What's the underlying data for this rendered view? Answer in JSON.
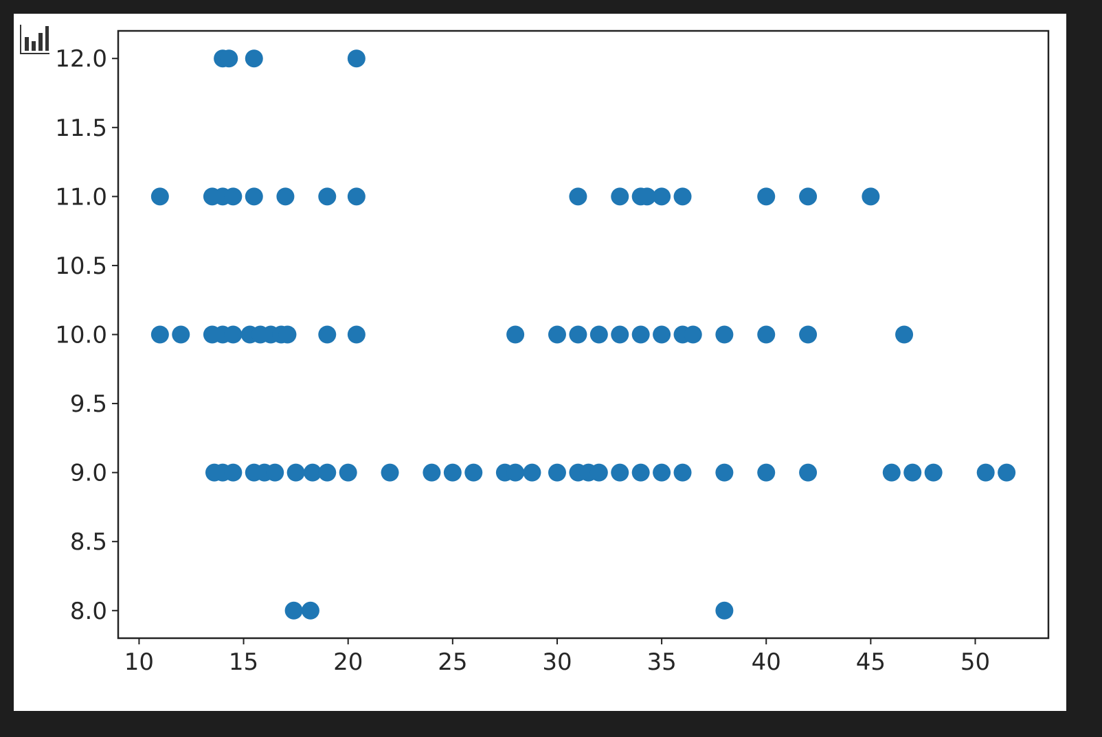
{
  "chart_data": {
    "type": "scatter",
    "title": "",
    "xlabel": "",
    "ylabel": "",
    "xlim": [
      9.0,
      53.5
    ],
    "ylim": [
      7.8,
      12.2
    ],
    "xticks": [
      "10",
      "15",
      "20",
      "25",
      "30",
      "35",
      "40",
      "45",
      "50"
    ],
    "yticks": [
      "8.0",
      "8.5",
      "9.0",
      "9.5",
      "10.0",
      "10.5",
      "11.0",
      "11.5",
      "12.0"
    ],
    "grid": false,
    "marker_color": "#1f77b4",
    "series": [
      {
        "points": [
          [
            14.0,
            12
          ],
          [
            14.3,
            12
          ],
          [
            15.5,
            12
          ],
          [
            20.4,
            12
          ],
          [
            11,
            11
          ],
          [
            13.5,
            11
          ],
          [
            14,
            11
          ],
          [
            14.5,
            11
          ],
          [
            15.5,
            11
          ],
          [
            17,
            11
          ],
          [
            19,
            11
          ],
          [
            20.4,
            11
          ],
          [
            31,
            11
          ],
          [
            33,
            11
          ],
          [
            34,
            11
          ],
          [
            34.3,
            11
          ],
          [
            35,
            11
          ],
          [
            36,
            11
          ],
          [
            40,
            11
          ],
          [
            42,
            11
          ],
          [
            45,
            11
          ],
          [
            11,
            10
          ],
          [
            12,
            10
          ],
          [
            13.5,
            10
          ],
          [
            14,
            10
          ],
          [
            14.5,
            10
          ],
          [
            15.3,
            10
          ],
          [
            15.8,
            10
          ],
          [
            16.3,
            10
          ],
          [
            16.8,
            10
          ],
          [
            17.1,
            10
          ],
          [
            19,
            10
          ],
          [
            20.4,
            10
          ],
          [
            28,
            10
          ],
          [
            30,
            10
          ],
          [
            31,
            10
          ],
          [
            32,
            10
          ],
          [
            33,
            10
          ],
          [
            34,
            10
          ],
          [
            35,
            10
          ],
          [
            36,
            10
          ],
          [
            36.5,
            10
          ],
          [
            38,
            10
          ],
          [
            40,
            10
          ],
          [
            42,
            10
          ],
          [
            46.6,
            10
          ],
          [
            13.6,
            9
          ],
          [
            14,
            9
          ],
          [
            14.5,
            9
          ],
          [
            15.5,
            9
          ],
          [
            16,
            9
          ],
          [
            16.5,
            9
          ],
          [
            17.5,
            9
          ],
          [
            18.3,
            9
          ],
          [
            19,
            9
          ],
          [
            20,
            9
          ],
          [
            22,
            9
          ],
          [
            24,
            9
          ],
          [
            25,
            9
          ],
          [
            26,
            9
          ],
          [
            27.5,
            9
          ],
          [
            28,
            9
          ],
          [
            28.8,
            9
          ],
          [
            30,
            9
          ],
          [
            31,
            9
          ],
          [
            31.5,
            9
          ],
          [
            32,
            9
          ],
          [
            33,
            9
          ],
          [
            34,
            9
          ],
          [
            35,
            9
          ],
          [
            36,
            9
          ],
          [
            38,
            9
          ],
          [
            40,
            9
          ],
          [
            42,
            9
          ],
          [
            46,
            9
          ],
          [
            47,
            9
          ],
          [
            48,
            9
          ],
          [
            50.5,
            9
          ],
          [
            51.5,
            9
          ],
          [
            17.4,
            8
          ],
          [
            18.2,
            8
          ],
          [
            38,
            8
          ]
        ]
      }
    ]
  },
  "toolbar": {
    "icon": "bar-chart-icon"
  }
}
